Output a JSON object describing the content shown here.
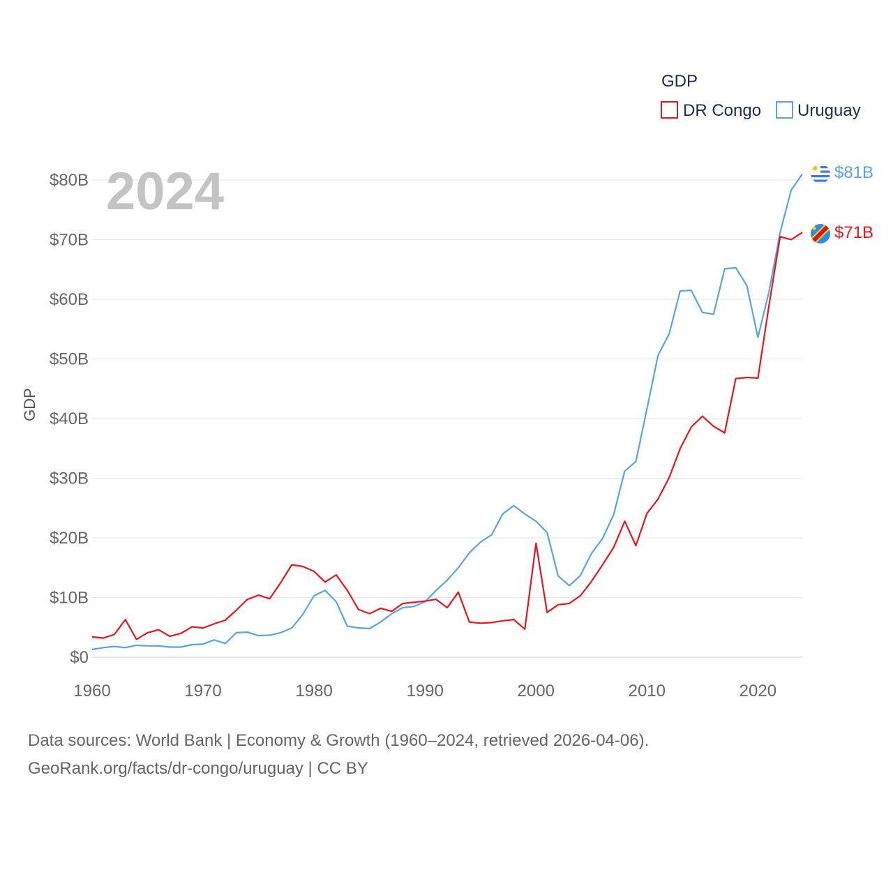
{
  "chart_data": {
    "type": "line",
    "title": "GDP",
    "legend_title": "GDP",
    "ylabel": "GDP",
    "xlabel": "",
    "year_label": "2024",
    "ylim": [
      0,
      80
    ],
    "xlim": [
      1960,
      2024
    ],
    "y_ticks": [
      {
        "v": 0,
        "label": "$0"
      },
      {
        "v": 10,
        "label": "$10B"
      },
      {
        "v": 20,
        "label": "$20B"
      },
      {
        "v": 30,
        "label": "$30B"
      },
      {
        "v": 40,
        "label": "$40B"
      },
      {
        "v": 50,
        "label": "$50B"
      },
      {
        "v": 60,
        "label": "$60B"
      },
      {
        "v": 70,
        "label": "$70B"
      },
      {
        "v": 80,
        "label": "$80B"
      }
    ],
    "x_ticks": [
      1960,
      1970,
      1980,
      1990,
      2000,
      2010,
      2020
    ],
    "legend_position": "top-right",
    "series": [
      {
        "name": "DR Congo",
        "color": "#e8151b",
        "end_label": "$71B",
        "flag": "dr-congo-flag-icon",
        "values": [
          3.4,
          3.2,
          3.8,
          6.3,
          3.0,
          4.1,
          4.6,
          3.5,
          4.0,
          5.1,
          4.9,
          5.6,
          6.2,
          7.9,
          9.7,
          10.4,
          9.8,
          12.5,
          15.5,
          15.2,
          14.4,
          12.6,
          13.8,
          11.2,
          8.0,
          7.3,
          8.2,
          7.7,
          9.0,
          9.2,
          9.4,
          9.7,
          8.3,
          10.9,
          5.9,
          5.7,
          5.8,
          6.1,
          6.3,
          4.7,
          19.1,
          7.5,
          8.8,
          9.0,
          10.3,
          12.7,
          15.5,
          18.4,
          22.8,
          18.7,
          24.1,
          26.5,
          30.1,
          35.0,
          38.6,
          40.4,
          38.7,
          37.6,
          46.7,
          46.9,
          46.8,
          59.0,
          70.5,
          70.0,
          71.2
        ]
      },
      {
        "name": "Uruguay",
        "color": "#5ba2e3",
        "end_label": "$81B",
        "flag": "uruguay-flag-icon",
        "values": [
          1.3,
          1.6,
          1.8,
          1.6,
          2.0,
          1.9,
          1.9,
          1.7,
          1.7,
          2.1,
          2.2,
          2.9,
          2.3,
          4.1,
          4.2,
          3.6,
          3.7,
          4.1,
          4.9,
          7.2,
          10.3,
          11.2,
          9.3,
          5.2,
          4.9,
          4.8,
          5.9,
          7.3,
          8.3,
          8.5,
          9.3,
          11.2,
          12.9,
          15.0,
          17.5,
          19.3,
          20.5,
          24.0,
          25.4,
          24.0,
          22.8,
          20.9,
          13.6,
          12.0,
          13.7,
          17.4,
          19.9,
          23.9,
          31.2,
          32.8,
          41.6,
          50.6,
          54.2,
          61.4,
          61.5,
          57.8,
          57.5,
          65.1,
          65.3,
          62.3,
          53.6,
          61.3,
          71.2,
          78.3,
          81.0
        ]
      }
    ]
  },
  "source": {
    "line1": "Data sources: World Bank | Economy & Growth (1960–2024, retrieved 2026-04-06).",
    "line2": "GeoRank.org/facts/dr-congo/uruguay | CC BY"
  }
}
